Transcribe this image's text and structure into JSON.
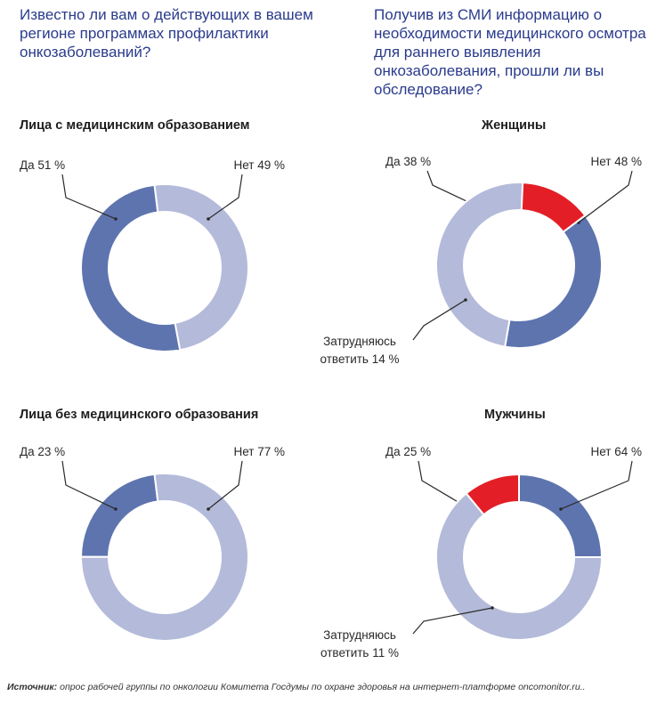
{
  "questions": {
    "left": "Известно ли вам о действующих в вашем регионе программах профилактики онкозаболеваний?",
    "right": "Получив из СМИ информацию о необходимости медицинского осмотра для раннего выявления онкозаболевания, прошли ли вы обследование?"
  },
  "source": {
    "label": "Источник:",
    "text": " опрос рабочей группы по онкологии Комитета Госдумы по охране здоровья на интернет-платформе oncomonitor.ru.."
  },
  "colors": {
    "yes": "#5e74ae",
    "no": "#b4bad9",
    "hard": "#e41e26",
    "line": "#2a2a2a"
  },
  "chart_data": [
    {
      "type": "pie",
      "title": "Лица с медицинским образованием",
      "slices": [
        {
          "key": "yes",
          "label": "Да 51 %",
          "value": 51
        },
        {
          "key": "no",
          "label": "Нет 49 %",
          "value": 49
        }
      ]
    },
    {
      "type": "pie",
      "title": "Лица без медицинского образования",
      "slices": [
        {
          "key": "yes",
          "label": "Да 23 %",
          "value": 23
        },
        {
          "key": "no",
          "label": "Нет 77 %",
          "value": 77
        }
      ]
    },
    {
      "type": "pie",
      "title": "Женщины",
      "slices": [
        {
          "key": "yes",
          "label": "Да 38 %",
          "value": 38
        },
        {
          "key": "no",
          "label": "Нет 48 %",
          "value": 48
        },
        {
          "key": "hard",
          "label": [
            "Затрудняюсь",
            "ответить 14 %"
          ],
          "value": 14
        }
      ]
    },
    {
      "type": "pie",
      "title": "Мужчины",
      "slices": [
        {
          "key": "yes",
          "label": "Да 25 %",
          "value": 25
        },
        {
          "key": "no",
          "label": "Нет 64 %",
          "value": 64
        },
        {
          "key": "hard",
          "label": [
            "Затрудняюсь",
            "ответить 11 %"
          ],
          "value": 11
        }
      ]
    }
  ]
}
